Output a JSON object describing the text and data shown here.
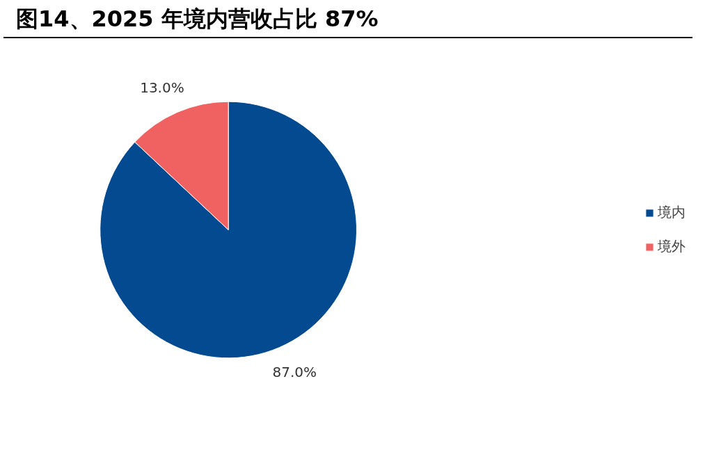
{
  "chart_data": {
    "type": "pie",
    "title": "图14、2025 年境内营收占比 87%",
    "categories": [
      "境内",
      "境外"
    ],
    "values": [
      87,
      13
    ],
    "colors": [
      "#034a91",
      "#f06262"
    ],
    "value_labels": [
      "87.0%",
      "13.0%"
    ],
    "legend": "right"
  }
}
